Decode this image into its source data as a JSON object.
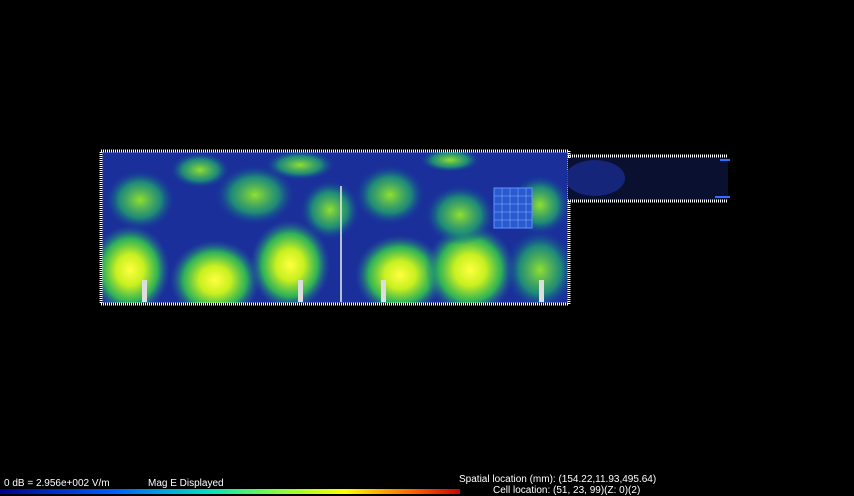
{
  "status": {
    "scale": "0 dB = 2.956e+002 V/m",
    "mode": "Mag E Displayed",
    "spatial_location": "Spatial location (mm): (154.22,11.93,495.64)",
    "cell_location": "Cell location: (51, 23, 99)(Z: 0)(2)"
  }
}
